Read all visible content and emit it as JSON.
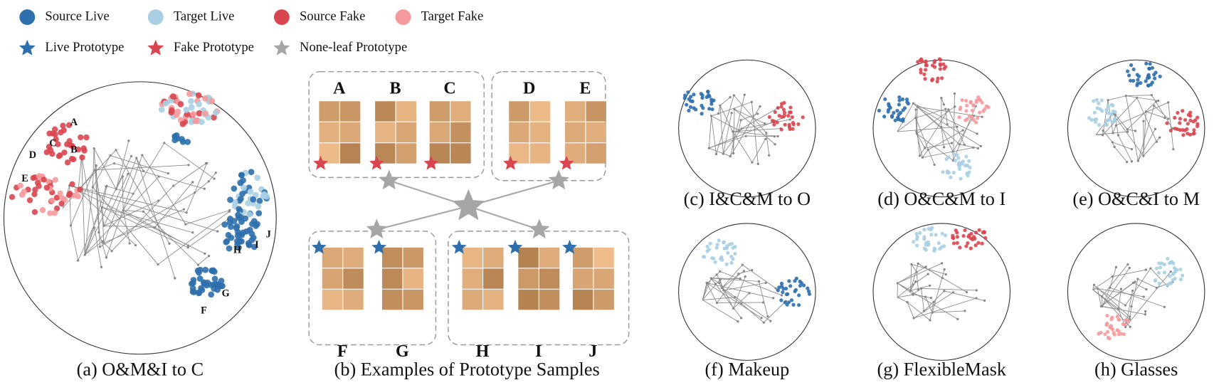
{
  "legend": {
    "row1": [
      "Source Live",
      "Target Live",
      "Source Fake",
      "Target Fake"
    ],
    "row2": [
      "Live Prototype",
      "Fake Prototype",
      "None-leaf Prototype"
    ]
  },
  "panel_a": {
    "caption": "(a) O&M&I to C",
    "labels": [
      "A",
      "B",
      "C",
      "D",
      "E",
      "F",
      "G",
      "H",
      "I",
      "J"
    ]
  },
  "panel_b": {
    "caption": "(b) Examples of Prototype Samples",
    "labels": [
      "A",
      "B",
      "C",
      "D",
      "E",
      "F",
      "G",
      "H",
      "I",
      "J"
    ]
  },
  "panels": [
    "(c) I&C&M to O",
    "(d) O&C&M to I",
    "(e) O&C&I to M",
    "(f) Makeup",
    "(g) FlexibleMask",
    "(h) Glasses"
  ]
}
